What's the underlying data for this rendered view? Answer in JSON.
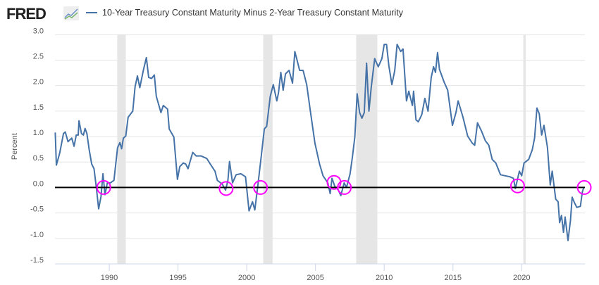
{
  "logo": {
    "text": "FRED",
    "icon": "line-chart-icon"
  },
  "chart_data": {
    "type": "line",
    "title": "",
    "ylabel": "Percent",
    "xlabel": "",
    "ylim": [
      -1.5,
      3.0
    ],
    "xlim": [
      1986.05,
      2024.6
    ],
    "yticks": [
      "3.0",
      "2.5",
      "2.0",
      "1.5",
      "1.0",
      "0.5",
      "0.0",
      "-0.5",
      "-1.0",
      "-1.5"
    ],
    "xticks": [
      "1990",
      "1995",
      "2000",
      "2005",
      "2010",
      "2015",
      "2020"
    ],
    "grid": true,
    "legend_position": "top",
    "series": [
      {
        "name": "10-Year Treasury Constant Maturity Minus 2-Year Treasury Constant Maturity",
        "color": "#4572A7",
        "points": [
          [
            1986.07,
            1.08
          ],
          [
            1986.15,
            0.44
          ],
          [
            1986.4,
            0.68
          ],
          [
            1986.67,
            1.06
          ],
          [
            1986.8,
            1.09
          ],
          [
            1987.0,
            0.9
          ],
          [
            1987.27,
            0.97
          ],
          [
            1987.44,
            0.81
          ],
          [
            1987.6,
            1.03
          ],
          [
            1987.74,
            1.03
          ],
          [
            1987.8,
            1.31
          ],
          [
            1987.98,
            1.06
          ],
          [
            1988.12,
            1.03
          ],
          [
            1988.24,
            1.16
          ],
          [
            1988.37,
            1.06
          ],
          [
            1988.54,
            0.74
          ],
          [
            1988.72,
            0.46
          ],
          [
            1988.89,
            0.37
          ],
          [
            1989.06,
            0.0
          ],
          [
            1989.23,
            -0.42
          ],
          [
            1989.4,
            -0.18
          ],
          [
            1989.54,
            0.27
          ],
          [
            1989.69,
            -0.14
          ],
          [
            1989.86,
            0.09
          ],
          [
            1990.08,
            0.09
          ],
          [
            1990.34,
            0.14
          ],
          [
            1990.6,
            0.78
          ],
          [
            1990.77,
            0.88
          ],
          [
            1990.9,
            0.76
          ],
          [
            1991.03,
            0.97
          ],
          [
            1991.2,
            1.01
          ],
          [
            1991.37,
            1.38
          ],
          [
            1991.71,
            1.5
          ],
          [
            1991.88,
            1.98
          ],
          [
            1992.05,
            2.19
          ],
          [
            1992.22,
            1.96
          ],
          [
            1992.48,
            2.3
          ],
          [
            1992.7,
            2.55
          ],
          [
            1992.87,
            2.16
          ],
          [
            1993.08,
            2.14
          ],
          [
            1993.28,
            2.21
          ],
          [
            1993.42,
            1.79
          ],
          [
            1993.76,
            1.47
          ],
          [
            1993.93,
            1.61
          ],
          [
            1994.24,
            1.54
          ],
          [
            1994.36,
            1.15
          ],
          [
            1994.7,
            0.99
          ],
          [
            1994.96,
            0.16
          ],
          [
            1995.13,
            0.41
          ],
          [
            1995.38,
            0.48
          ],
          [
            1995.56,
            0.46
          ],
          [
            1995.73,
            0.37
          ],
          [
            1996.07,
            0.69
          ],
          [
            1996.32,
            0.62
          ],
          [
            1996.67,
            0.62
          ],
          [
            1997.09,
            0.57
          ],
          [
            1997.35,
            0.46
          ],
          [
            1997.69,
            0.32
          ],
          [
            1997.86,
            0.14
          ],
          [
            1998.21,
            0.07
          ],
          [
            1998.46,
            -0.05
          ],
          [
            1998.63,
            0.14
          ],
          [
            1998.75,
            0.51
          ],
          [
            1998.97,
            0.09
          ],
          [
            1999.23,
            0.25
          ],
          [
            1999.57,
            0.27
          ],
          [
            1999.91,
            0.21
          ],
          [
            2000.17,
            -0.46
          ],
          [
            2000.42,
            -0.28
          ],
          [
            2000.59,
            -0.44
          ],
          [
            2000.77,
            -0.05
          ],
          [
            2001.03,
            0.55
          ],
          [
            2001.28,
            1.15
          ],
          [
            2001.45,
            1.2
          ],
          [
            2001.71,
            1.79
          ],
          [
            2001.93,
            2.02
          ],
          [
            2002.19,
            1.7
          ],
          [
            2002.31,
            1.86
          ],
          [
            2002.48,
            2.26
          ],
          [
            2002.65,
            1.91
          ],
          [
            2002.82,
            2.23
          ],
          [
            2003.08,
            2.3
          ],
          [
            2003.33,
            2.05
          ],
          [
            2003.5,
            2.67
          ],
          [
            2003.68,
            2.48
          ],
          [
            2003.85,
            2.3
          ],
          [
            2004.1,
            2.3
          ],
          [
            2004.36,
            2.02
          ],
          [
            2004.62,
            1.52
          ],
          [
            2004.96,
            0.87
          ],
          [
            2005.3,
            0.46
          ],
          [
            2005.55,
            0.23
          ],
          [
            2005.9,
            0.09
          ],
          [
            2006.07,
            -0.12
          ],
          [
            2006.2,
            0.18
          ],
          [
            2006.41,
            0.02
          ],
          [
            2006.67,
            -0.05
          ],
          [
            2006.84,
            -0.16
          ],
          [
            2007.09,
            0.09
          ],
          [
            2007.26,
            0.0
          ],
          [
            2007.52,
            0.27
          ],
          [
            2007.69,
            0.6
          ],
          [
            2007.86,
            0.99
          ],
          [
            2008.03,
            1.84
          ],
          [
            2008.21,
            1.47
          ],
          [
            2008.38,
            1.36
          ],
          [
            2008.55,
            1.47
          ],
          [
            2008.72,
            2.44
          ],
          [
            2008.89,
            1.5
          ],
          [
            2009.06,
            1.98
          ],
          [
            2009.31,
            2.53
          ],
          [
            2009.57,
            2.37
          ],
          [
            2009.83,
            2.53
          ],
          [
            2010.0,
            2.81
          ],
          [
            2010.17,
            2.81
          ],
          [
            2010.34,
            2.39
          ],
          [
            2010.56,
            2.02
          ],
          [
            2010.77,
            2.3
          ],
          [
            2010.94,
            2.81
          ],
          [
            2011.2,
            2.67
          ],
          [
            2011.37,
            2.72
          ],
          [
            2011.62,
            1.7
          ],
          [
            2011.79,
            1.89
          ],
          [
            2012.05,
            1.61
          ],
          [
            2012.14,
            1.89
          ],
          [
            2012.31,
            1.33
          ],
          [
            2012.48,
            1.29
          ],
          [
            2012.73,
            1.43
          ],
          [
            2012.96,
            1.75
          ],
          [
            2013.19,
            1.5
          ],
          [
            2013.42,
            2.16
          ],
          [
            2013.59,
            2.37
          ],
          [
            2013.73,
            2.26
          ],
          [
            2013.88,
            2.65
          ],
          [
            2014.02,
            2.32
          ],
          [
            2014.36,
            2.07
          ],
          [
            2014.62,
            1.91
          ],
          [
            2014.96,
            1.22
          ],
          [
            2015.22,
            1.47
          ],
          [
            2015.38,
            1.7
          ],
          [
            2015.73,
            1.38
          ],
          [
            2016.07,
            1.01
          ],
          [
            2016.41,
            0.87
          ],
          [
            2016.58,
            0.83
          ],
          [
            2016.79,
            1.27
          ],
          [
            2017.09,
            1.1
          ],
          [
            2017.35,
            0.92
          ],
          [
            2017.61,
            0.83
          ],
          [
            2017.86,
            0.55
          ],
          [
            2018.12,
            0.48
          ],
          [
            2018.46,
            0.25
          ],
          [
            2018.8,
            0.23
          ],
          [
            2019.14,
            0.21
          ],
          [
            2019.4,
            0.18
          ],
          [
            2019.54,
            -0.02
          ],
          [
            2019.83,
            0.32
          ],
          [
            2020.0,
            0.23
          ],
          [
            2020.17,
            0.48
          ],
          [
            2020.51,
            0.55
          ],
          [
            2020.77,
            0.74
          ],
          [
            2020.94,
            0.97
          ],
          [
            2021.11,
            1.56
          ],
          [
            2021.28,
            1.45
          ],
          [
            2021.45,
            1.03
          ],
          [
            2021.62,
            1.22
          ],
          [
            2021.88,
            0.78
          ],
          [
            2022.08,
            0.05
          ],
          [
            2022.22,
            0.32
          ],
          [
            2022.48,
            -0.23
          ],
          [
            2022.65,
            -0.28
          ],
          [
            2022.76,
            -0.69
          ],
          [
            2022.9,
            -0.55
          ],
          [
            2023.04,
            -0.88
          ],
          [
            2023.16,
            -0.58
          ],
          [
            2023.37,
            -1.04
          ],
          [
            2023.55,
            -0.65
          ],
          [
            2023.67,
            -0.19
          ],
          [
            2023.84,
            -0.3
          ],
          [
            2024.01,
            -0.39
          ],
          [
            2024.27,
            -0.37
          ],
          [
            2024.41,
            -0.09
          ],
          [
            2024.52,
            0.0
          ]
        ]
      }
    ],
    "recessions": [
      [
        1990.58,
        1991.2
      ],
      [
        2001.2,
        2001.88
      ],
      [
        2007.96,
        2009.5
      ],
      [
        2020.12,
        2020.3
      ]
    ],
    "reference_line": {
      "value": 0.0,
      "color": "#000000"
    },
    "highlight_circles": {
      "color": "#FF00FF",
      "points": [
        [
          1989.6,
          0.0
        ],
        [
          1998.5,
          -0.02
        ],
        [
          2001.0,
          0.0
        ],
        [
          2006.35,
          0.1
        ],
        [
          2007.1,
          0.0
        ],
        [
          2019.7,
          0.03
        ],
        [
          2024.55,
          0.0
        ]
      ]
    }
  }
}
